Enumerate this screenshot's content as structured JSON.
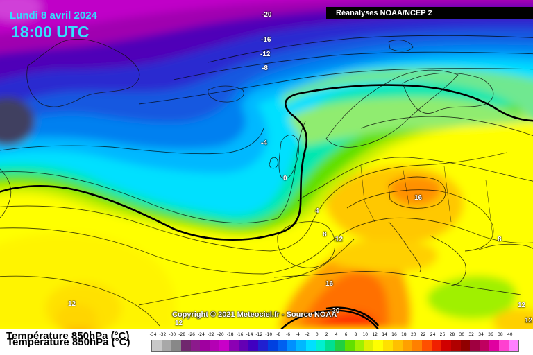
{
  "header": {
    "date": "Lundi 8 avril 2024",
    "time": "18:00 UTC",
    "source": "Réanalyses NOAA/NCEP 2"
  },
  "footer": {
    "copyright": "Copyright © 2021 Meteociel.fr - Source NOAA"
  },
  "legend": {
    "title": "Température 850hPa (°C)",
    "ticks": [
      "-34",
      "-32",
      "-30",
      "-28",
      "-26",
      "-24",
      "-22",
      "-20",
      "-18",
      "-16",
      "-14",
      "-12",
      "-10",
      "-8",
      "-6",
      "-4",
      "-2",
      "0",
      "2",
      "4",
      "6",
      "8",
      "10",
      "12",
      "14",
      "16",
      "18",
      "20",
      "22",
      "24",
      "26",
      "28",
      "30",
      "32",
      "34",
      "36",
      "38",
      "40"
    ],
    "colors": [
      "#c8c8c8",
      "#a8a8a8",
      "#888888",
      "#70286e",
      "#8c1a8c",
      "#a000a0",
      "#b400b4",
      "#c800c8",
      "#8c00b4",
      "#6400b4",
      "#4000c0",
      "#2020d0",
      "#0040e0",
      "#0060f0",
      "#0090ff",
      "#00b8ff",
      "#00e0ff",
      "#00f0d0",
      "#00e090",
      "#20d040",
      "#60e000",
      "#a0f000",
      "#e0f000",
      "#ffff00",
      "#ffe000",
      "#ffc000",
      "#ffa000",
      "#ff8000",
      "#ff5000",
      "#f02000",
      "#d00000",
      "#b00000",
      "#900000",
      "#a00040",
      "#c00060",
      "#e000a0",
      "#ff40d0",
      "#ff80ff"
    ]
  },
  "isotherms": [
    "-20",
    "-16",
    "-12",
    "-8",
    "-4",
    "0",
    "4",
    "8",
    "12",
    "16",
    "12",
    "12",
    "16",
    "8",
    "12",
    "12",
    "-20"
  ]
}
